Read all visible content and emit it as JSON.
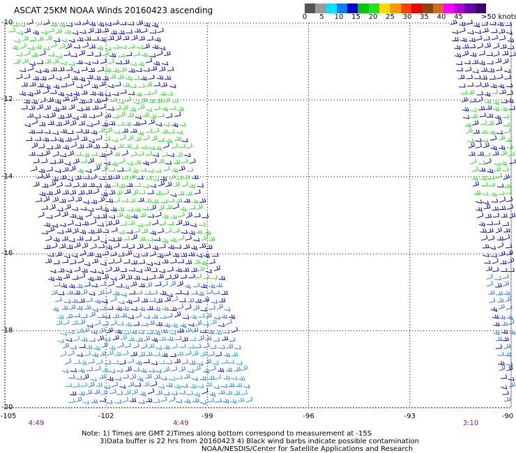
{
  "title": "ASCAT 25KM NOAA Winds 20160423 ascending",
  "colorbar": {
    "colors": [
      "#555555",
      "#9a9a9a",
      "#00e5ff",
      "#007fff",
      "#0000c8",
      "#00c800",
      "#20e020",
      "#ffd800",
      "#ff9900",
      "#ff4000",
      "#ee0000",
      "#8b4513",
      "#d2691e",
      "#ff00ff",
      "#b000d8",
      "#6a00a8",
      "#3a0070"
    ],
    "labels": [
      "0",
      "5",
      "10",
      "15",
      "20",
      "25",
      "30",
      "35",
      "40",
      "45",
      ">50 knots"
    ]
  },
  "y_axis": {
    "ticks": [
      "-10",
      "-12",
      "-14",
      "-16",
      "-18",
      "-20"
    ],
    "values": [
      -10,
      -12,
      -14,
      -16,
      -18,
      -20
    ]
  },
  "x_axis": {
    "ticks": [
      "-105",
      "-102",
      "-99",
      "-96",
      "-93",
      "-90"
    ],
    "values": [
      -105,
      -102,
      -99,
      -96,
      -93,
      -90
    ]
  },
  "times": [
    {
      "label": "4:49",
      "lon": -105
    },
    {
      "label": "4:49",
      "lon": -99
    },
    {
      "label": "3:10",
      "lon": -90.5
    }
  ],
  "notes": [
    "Note: 1) Times are GMT 2)Times along bottom correspond to measurement at -15S",
    "3)Data buffer is 22 hrs from 20160423 4) Black wind barbs indicate possible contamination",
    "NOAA/NESDIS/Center for Satellite Applications and Research"
  ],
  "swaths": [
    {
      "name": "main-swath",
      "lat_range": [
        -10,
        -20
      ],
      "lon_top": [
        -104.8,
        -100.5
      ],
      "lon_bottom": [
        -103.0,
        -97.7
      ]
    },
    {
      "name": "east-swath",
      "lat_range": [
        -10,
        -20
      ],
      "lon_top": [
        -91.8,
        -90.0
      ],
      "lon_bottom": [
        -90.2,
        -90.0
      ]
    }
  ],
  "barb_colors": {
    "blue": "#0000c8",
    "light_blue": "#2a6cf0",
    "cyan": "#18a0e8",
    "green": "#20e020"
  }
}
